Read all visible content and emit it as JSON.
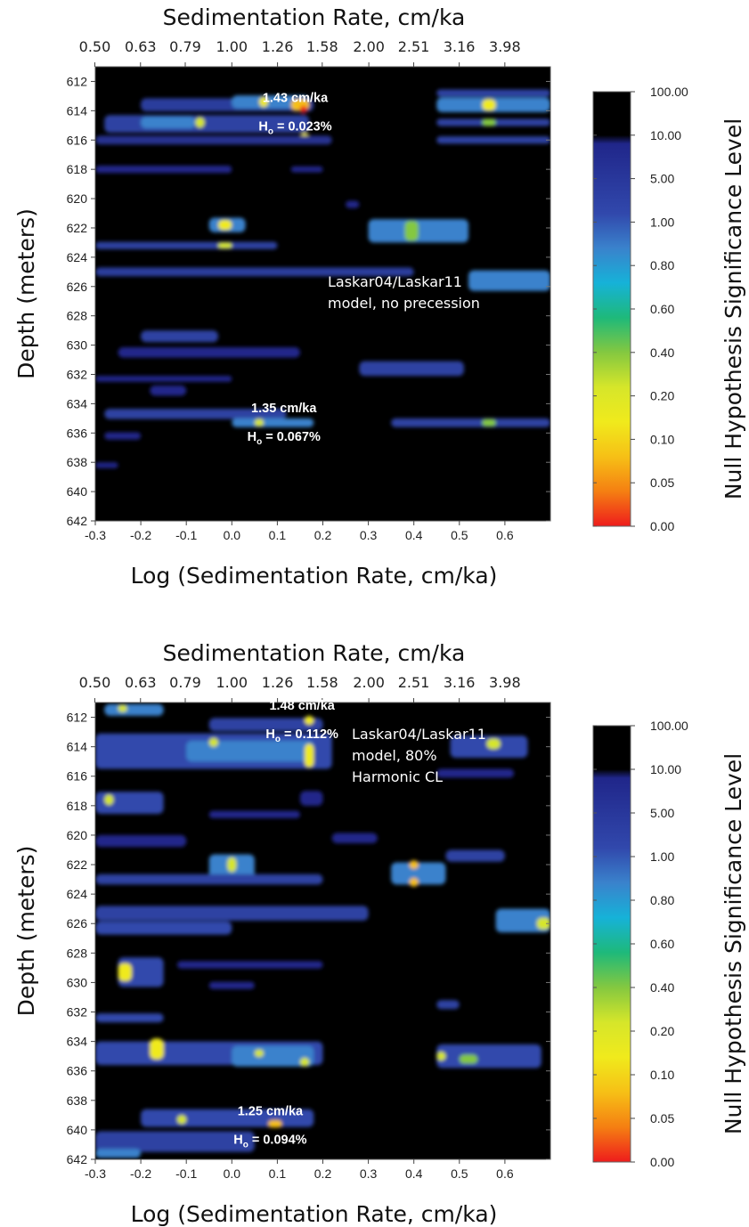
{
  "colors": {
    "background": "#000000",
    "colorbar": [
      "#ee1c1c",
      "#f57f12",
      "#f6c016",
      "#f0ea1c",
      "#d6e62a",
      "#84c840",
      "#1eb97a",
      "#16b2d8",
      "#3a82cc",
      "#3148ac",
      "#20268a",
      "#000000"
    ]
  },
  "chart_data": [
    {
      "type": "heatmap",
      "title": "",
      "top_axis_label": "Sedimentation Rate, cm/ka",
      "top_ticks": [
        "0.50",
        "0.63",
        "0.79",
        "1.00",
        "1.26",
        "1.58",
        "2.00",
        "2.51",
        "3.16",
        "3.98"
      ],
      "xlabel": "Log (Sedimentation Rate, cm/ka)",
      "ylabel": "Depth (meters)",
      "xlim": [
        -0.3,
        0.7
      ],
      "ylim": [
        642,
        611
      ],
      "x_ticks": [
        "-0.3",
        "-0.2",
        "-0.1",
        "0.0",
        "0.1",
        "0.2",
        "0.3",
        "0.4",
        "0.5",
        "0.6"
      ],
      "y_ticks": [
        "612",
        "614",
        "616",
        "618",
        "620",
        "622",
        "624",
        "626",
        "628",
        "630",
        "632",
        "634",
        "636",
        "638",
        "640",
        "642"
      ],
      "colorbar_label": "Null Hypothesis Significance Level",
      "colorbar_ticks": [
        "100.00",
        "10.00",
        "5.00",
        "1.00",
        "0.80",
        "0.60",
        "0.40",
        "0.20",
        "0.10",
        "0.05",
        "0.00"
      ],
      "model_label": [
        "Laskar04/Laskar11",
        "model, no precession"
      ],
      "annotations": [
        {
          "rate": "1.43 cm/ka",
          "h0_prefix": "H",
          "h0_sub": "o",
          "h0_value": " = 0.023%",
          "x": 0.155,
          "y": 614
        },
        {
          "rate": "1.35 cm/ka",
          "h0_prefix": "H",
          "h0_sub": "o",
          "h0_value": " = 0.067%",
          "x": 0.13,
          "y": 635.2
        }
      ],
      "features": [
        {
          "x": [
            -0.28,
            0.17
          ],
          "y": 614.9,
          "h": 1.2,
          "color": "#2f42a2"
        },
        {
          "x": [
            -0.2,
            0.18
          ],
          "y": 613.6,
          "h": 0.9,
          "color": "#2c3d9c"
        },
        {
          "x": [
            -0.2,
            -0.08
          ],
          "y": 614.8,
          "h": 0.8,
          "color": "#3a82cc"
        },
        {
          "x": [
            0.0,
            0.17
          ],
          "y": 613.4,
          "h": 0.9,
          "color": "#3a82cc"
        },
        {
          "x": [
            0.06,
            0.08
          ],
          "y": 613.4,
          "h": 0.7,
          "color": "#f0ea1c"
        },
        {
          "x": [
            0.13,
            0.17
          ],
          "y": 613.6,
          "h": 0.8,
          "color": "#f6c016"
        },
        {
          "x": [
            0.15,
            0.165
          ],
          "y": 613.9,
          "h": 0.5,
          "color": "#ee1c1c"
        },
        {
          "x": [
            -0.08,
            -0.06
          ],
          "y": 614.8,
          "h": 0.7,
          "color": "#d6e62a"
        },
        {
          "x": [
            0.15,
            0.17
          ],
          "y": 615.8,
          "h": 0.6,
          "color": "#f0ea1c"
        },
        {
          "x": [
            -0.3,
            0.22
          ],
          "y": 616.0,
          "h": 0.6,
          "color": "#25318f"
        },
        {
          "x": [
            0.45,
            0.7
          ],
          "y": 613.6,
          "h": 1.0,
          "color": "#3a82cc"
        },
        {
          "x": [
            0.45,
            0.7
          ],
          "y": 612.8,
          "h": 0.5,
          "color": "#2f42a2"
        },
        {
          "x": [
            0.55,
            0.58
          ],
          "y": 613.6,
          "h": 0.8,
          "color": "#f0ea1c"
        },
        {
          "x": [
            0.45,
            0.7
          ],
          "y": 614.8,
          "h": 0.5,
          "color": "#2f42a2"
        },
        {
          "x": [
            0.55,
            0.58
          ],
          "y": 614.8,
          "h": 0.5,
          "color": "#84c840"
        },
        {
          "x": [
            0.45,
            0.7
          ],
          "y": 616.0,
          "h": 0.5,
          "color": "#2f42a2"
        },
        {
          "x": [
            -0.3,
            0.0
          ],
          "y": 618.0,
          "h": 0.5,
          "color": "#20268a"
        },
        {
          "x": [
            0.13,
            0.2
          ],
          "y": 618.0,
          "h": 0.4,
          "color": "#20268a"
        },
        {
          "x": [
            0.25,
            0.28
          ],
          "y": 620.4,
          "h": 0.5,
          "color": "#20268a"
        },
        {
          "x": [
            -0.05,
            0.03
          ],
          "y": 621.8,
          "h": 1.0,
          "color": "#3a82cc"
        },
        {
          "x": [
            -0.03,
            0.0
          ],
          "y": 621.8,
          "h": 0.7,
          "color": "#f0ea1c"
        },
        {
          "x": [
            -0.3,
            0.1
          ],
          "y": 623.2,
          "h": 0.5,
          "color": "#2f42a2"
        },
        {
          "x": [
            -0.03,
            0.0
          ],
          "y": 623.2,
          "h": 0.4,
          "color": "#d6e62a"
        },
        {
          "x": [
            0.3,
            0.52
          ],
          "y": 622.2,
          "h": 1.6,
          "color": "#3a82cc"
        },
        {
          "x": [
            0.38,
            0.41
          ],
          "y": 622.2,
          "h": 1.4,
          "color": "#84c840"
        },
        {
          "x": [
            -0.3,
            0.4
          ],
          "y": 625.0,
          "h": 0.6,
          "color": "#2c3d9c"
        },
        {
          "x": [
            0.52,
            0.7
          ],
          "y": 625.6,
          "h": 1.4,
          "color": "#3a82cc"
        },
        {
          "x": [
            -0.2,
            -0.03
          ],
          "y": 629.4,
          "h": 0.8,
          "color": "#2f42a2"
        },
        {
          "x": [
            -0.25,
            0.15
          ],
          "y": 630.5,
          "h": 0.7,
          "color": "#20268a"
        },
        {
          "x": [
            0.28,
            0.51
          ],
          "y": 631.6,
          "h": 1.0,
          "color": "#2f42a2"
        },
        {
          "x": [
            -0.3,
            0.0
          ],
          "y": 632.3,
          "h": 0.4,
          "color": "#20268a"
        },
        {
          "x": [
            -0.18,
            -0.1
          ],
          "y": 633.1,
          "h": 0.7,
          "color": "#20268a"
        },
        {
          "x": [
            -0.28,
            0.12
          ],
          "y": 634.7,
          "h": 0.7,
          "color": "#2f42a2"
        },
        {
          "x": [
            0.0,
            0.18
          ],
          "y": 635.3,
          "h": 0.6,
          "color": "#3a82cc"
        },
        {
          "x": [
            0.35,
            0.7
          ],
          "y": 635.3,
          "h": 0.6,
          "color": "#2f42a2"
        },
        {
          "x": [
            0.05,
            0.07
          ],
          "y": 635.3,
          "h": 0.5,
          "color": "#d6e62a"
        },
        {
          "x": [
            0.55,
            0.58
          ],
          "y": 635.3,
          "h": 0.5,
          "color": "#84c840"
        },
        {
          "x": [
            -0.28,
            -0.2
          ],
          "y": 636.2,
          "h": 0.5,
          "color": "#20268a"
        },
        {
          "x": [
            -0.3,
            -0.25
          ],
          "y": 638.2,
          "h": 0.4,
          "color": "#20268a"
        }
      ]
    },
    {
      "type": "heatmap",
      "title": "",
      "top_axis_label": "Sedimentation Rate, cm/ka",
      "top_ticks": [
        "0.50",
        "0.63",
        "0.79",
        "1.00",
        "1.26",
        "1.58",
        "2.00",
        "2.51",
        "3.16",
        "3.98"
      ],
      "xlabel": "Log (Sedimentation Rate, cm/ka)",
      "ylabel": "Depth (meters)",
      "xlim": [
        -0.3,
        0.7
      ],
      "ylim": [
        642,
        611
      ],
      "x_ticks": [
        "-0.3",
        "-0.2",
        "-0.1",
        "0.0",
        "0.1",
        "0.2",
        "0.3",
        "0.4",
        "0.5",
        "0.6"
      ],
      "y_ticks": [
        "612",
        "614",
        "616",
        "618",
        "620",
        "622",
        "624",
        "626",
        "628",
        "630",
        "632",
        "634",
        "636",
        "638",
        "640",
        "642"
      ],
      "colorbar_label": "Null Hypothesis Significance Level",
      "colorbar_ticks": [
        "100.00",
        "10.00",
        "5.00",
        "1.00",
        "0.80",
        "0.60",
        "0.40",
        "0.20",
        "0.10",
        "0.05",
        "0.00"
      ],
      "model_label": [
        "Laskar04/Laskar11",
        "model, 80%",
        "Harmonic CL"
      ],
      "annotations": [
        {
          "rate": "1.48 cm/ka",
          "h0_prefix": "H",
          "h0_sub": "o",
          "h0_value": " = 0.112%",
          "x": 0.17,
          "y": 612.1
        },
        {
          "rate": "1.25 cm/ka",
          "h0_prefix": "H",
          "h0_sub": "o",
          "h0_value": " = 0.094%",
          "x": 0.1,
          "y": 639.6
        }
      ],
      "features": [
        {
          "x": [
            -0.28,
            -0.15
          ],
          "y": 611.5,
          "h": 0.8,
          "color": "#3a82cc"
        },
        {
          "x": [
            -0.25,
            -0.23
          ],
          "y": 611.4,
          "h": 0.5,
          "color": "#d6e62a"
        },
        {
          "x": [
            -0.05,
            0.2
          ],
          "y": 612.5,
          "h": 0.9,
          "color": "#2f42a2"
        },
        {
          "x": [
            0.16,
            0.18
          ],
          "y": 612.2,
          "h": 0.6,
          "color": "#f0ea1c"
        },
        {
          "x": [
            -0.3,
            0.22
          ],
          "y": 614.3,
          "h": 2.4,
          "color": "#3148ac"
        },
        {
          "x": [
            -0.1,
            0.18
          ],
          "y": 614.3,
          "h": 1.4,
          "color": "#3a82cc"
        },
        {
          "x": [
            -0.05,
            -0.03
          ],
          "y": 613.7,
          "h": 0.6,
          "color": "#d6e62a"
        },
        {
          "x": [
            0.16,
            0.18
          ],
          "y": 614.6,
          "h": 1.6,
          "color": "#f0ea1c"
        },
        {
          "x": [
            0.48,
            0.65
          ],
          "y": 614.0,
          "h": 1.5,
          "color": "#3148ac"
        },
        {
          "x": [
            0.56,
            0.59
          ],
          "y": 613.8,
          "h": 0.7,
          "color": "#d6e62a"
        },
        {
          "x": [
            0.45,
            0.62
          ],
          "y": 615.8,
          "h": 0.6,
          "color": "#20268a"
        },
        {
          "x": [
            -0.3,
            -0.15
          ],
          "y": 617.8,
          "h": 1.5,
          "color": "#3148ac"
        },
        {
          "x": [
            -0.28,
            -0.26
          ],
          "y": 617.6,
          "h": 0.7,
          "color": "#d6e62a"
        },
        {
          "x": [
            0.15,
            0.2
          ],
          "y": 617.5,
          "h": 1.0,
          "color": "#20268a"
        },
        {
          "x": [
            -0.05,
            0.15
          ],
          "y": 618.6,
          "h": 0.5,
          "color": "#20268a"
        },
        {
          "x": [
            -0.3,
            -0.1
          ],
          "y": 620.4,
          "h": 0.8,
          "color": "#20268a"
        },
        {
          "x": [
            0.22,
            0.32
          ],
          "y": 620.2,
          "h": 0.7,
          "color": "#20268a"
        },
        {
          "x": [
            -0.05,
            0.05
          ],
          "y": 622.1,
          "h": 1.6,
          "color": "#3a82cc"
        },
        {
          "x": [
            -0.01,
            0.01
          ],
          "y": 622.0,
          "h": 1.0,
          "color": "#d6e62a"
        },
        {
          "x": [
            -0.3,
            0.2
          ],
          "y": 623.0,
          "h": 0.7,
          "color": "#2f42a2"
        },
        {
          "x": [
            0.35,
            0.47
          ],
          "y": 622.6,
          "h": 1.5,
          "color": "#3a82cc"
        },
        {
          "x": [
            0.39,
            0.41
          ],
          "y": 622.0,
          "h": 0.6,
          "color": "#f6c016"
        },
        {
          "x": [
            0.39,
            0.41
          ],
          "y": 623.2,
          "h": 0.6,
          "color": "#f6c016"
        },
        {
          "x": [
            0.47,
            0.6
          ],
          "y": 621.4,
          "h": 0.8,
          "color": "#2f42a2"
        },
        {
          "x": [
            -0.3,
            0.3
          ],
          "y": 625.3,
          "h": 1.0,
          "color": "#2f42a2"
        },
        {
          "x": [
            -0.3,
            0.0
          ],
          "y": 626.3,
          "h": 0.9,
          "color": "#3148ac"
        },
        {
          "x": [
            0.58,
            0.7
          ],
          "y": 625.8,
          "h": 1.6,
          "color": "#3a82cc"
        },
        {
          "x": [
            0.67,
            0.7
          ],
          "y": 626.0,
          "h": 0.8,
          "color": "#d6e62a"
        },
        {
          "x": [
            -0.25,
            -0.15
          ],
          "y": 629.3,
          "h": 2.0,
          "color": "#3148ac"
        },
        {
          "x": [
            -0.25,
            -0.22
          ],
          "y": 629.3,
          "h": 1.2,
          "color": "#f0ea1c"
        },
        {
          "x": [
            -0.12,
            0.2
          ],
          "y": 628.8,
          "h": 0.5,
          "color": "#20268a"
        },
        {
          "x": [
            -0.05,
            0.05
          ],
          "y": 630.2,
          "h": 0.5,
          "color": "#20268a"
        },
        {
          "x": [
            0.45,
            0.5
          ],
          "y": 631.5,
          "h": 0.6,
          "color": "#2f42a2"
        },
        {
          "x": [
            -0.3,
            -0.15
          ],
          "y": 632.4,
          "h": 0.6,
          "color": "#3148ac"
        },
        {
          "x": [
            -0.3,
            0.2
          ],
          "y": 634.8,
          "h": 1.6,
          "color": "#3148ac"
        },
        {
          "x": [
            -0.18,
            -0.15
          ],
          "y": 634.5,
          "h": 1.4,
          "color": "#f0ea1c"
        },
        {
          "x": [
            0.0,
            0.18
          ],
          "y": 635.0,
          "h": 1.4,
          "color": "#3a82cc"
        },
        {
          "x": [
            0.05,
            0.07
          ],
          "y": 634.8,
          "h": 0.5,
          "color": "#d6e62a"
        },
        {
          "x": [
            0.15,
            0.17
          ],
          "y": 635.4,
          "h": 0.6,
          "color": "#d6e62a"
        },
        {
          "x": [
            0.45,
            0.68
          ],
          "y": 635.0,
          "h": 1.6,
          "color": "#3148ac"
        },
        {
          "x": [
            0.45,
            0.47
          ],
          "y": 635.0,
          "h": 0.6,
          "color": "#d6e62a"
        },
        {
          "x": [
            0.5,
            0.54
          ],
          "y": 635.2,
          "h": 0.6,
          "color": "#84c840"
        },
        {
          "x": [
            -0.2,
            0.18
          ],
          "y": 639.2,
          "h": 1.2,
          "color": "#3148ac"
        },
        {
          "x": [
            -0.12,
            -0.1
          ],
          "y": 639.3,
          "h": 0.6,
          "color": "#d6e62a"
        },
        {
          "x": [
            0.08,
            0.11
          ],
          "y": 639.6,
          "h": 0.5,
          "color": "#f6c016"
        },
        {
          "x": [
            -0.3,
            0.05
          ],
          "y": 640.8,
          "h": 1.4,
          "color": "#2f42a2"
        },
        {
          "x": [
            -0.3,
            -0.2
          ],
          "y": 641.6,
          "h": 0.6,
          "color": "#3a82cc"
        }
      ]
    }
  ]
}
